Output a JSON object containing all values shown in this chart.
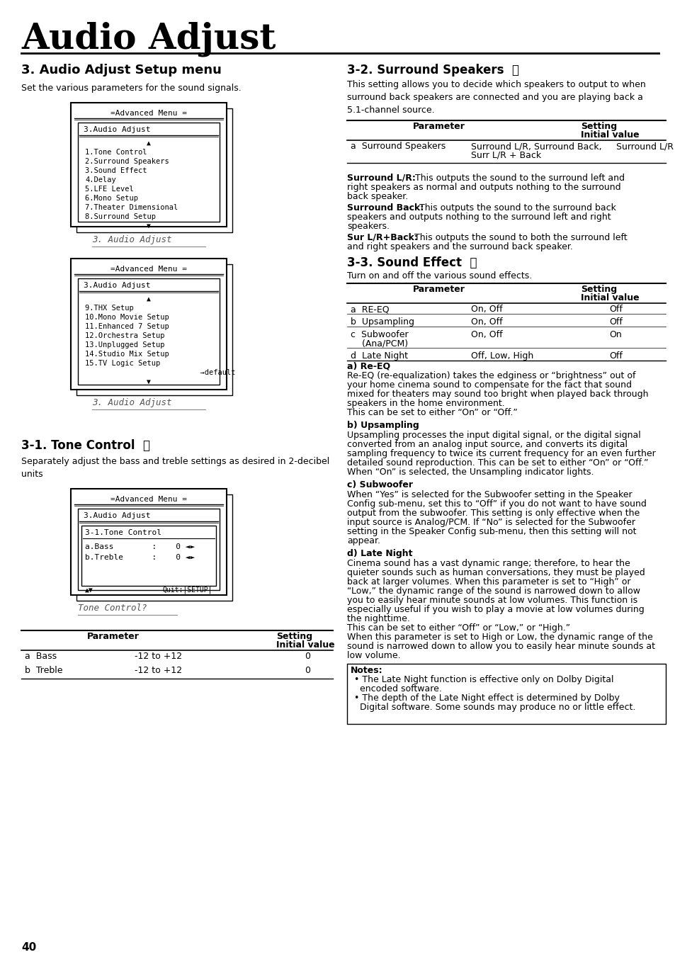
{
  "page_title": "Audio Adjust",
  "section_title": "3. Audio Adjust Setup menu",
  "section_subtitle": "Set the various parameters for the sound signals.",
  "menu1_title": "=Advanced Menu =",
  "menu1_subtitle": "3.Audio Adjust",
  "menu1_items": [
    "▲",
    "1.Tone Control",
    "2.Surround Speakers",
    "3.Sound Effect",
    "4.Delay",
    "5.LFE Level",
    "6.Mono Setup",
    "7.Theater Dimensional",
    "8.Surround Setup",
    "▼"
  ],
  "menu1_label": "3. Audio Adjust",
  "menu2_title": "=Advanced Menu =",
  "menu2_subtitle": "3.Audio Adjust",
  "menu2_items": [
    "▲",
    "9.THX Setup",
    "10.Mono Movie Setup",
    "11.Enhanced 7 Setup",
    "12.Orchestra Setup",
    "13.Unplugged Setup",
    "14.Studio Mix Setup",
    "15.TV Logic Setup",
    "                          →default",
    "▼"
  ],
  "menu2_label": "3. Audio Adjust",
  "tone_section": "3-1. Tone Control",
  "tone_text": "Separately adjust the bass and treble settings as desired in 2-decibel\nunits",
  "menu3_title": "=Advanced Menu =",
  "menu3_subtitle": "3.Audio Adjust",
  "menu3_inner_title": "3-1.Tone Control",
  "menu3_items": [
    "a.Bass        :    0 ◄►",
    "b.Treble      :    0 ◄►"
  ],
  "menu3_footer": "▲▼            Quit:|SETUP|",
  "menu3_label": "Tone Control?",
  "param_table_headers": [
    "Parameter",
    "Setting\nInitial value"
  ],
  "param_table_rows": [
    [
      "a  Bass",
      "-12 to +12",
      "0"
    ],
    [
      "b  Treble",
      "-12 to +12",
      "0"
    ]
  ],
  "right_section1_title": "3-2. Surround Speakers",
  "right_section1_intro": "This setting allows you to decide which speakers to output to when\nsurround back speakers are connected and you are playing back a\n5.1-channel source.",
  "right_table1_headers": [
    "Parameter",
    "Setting\nInitial value"
  ],
  "right_table1_rows": [
    [
      "a  Surround Speakers",
      "Surround L/R, Surround Back,\nSurr L/R + Back",
      "Surround L/R"
    ]
  ],
  "surround_lr_text": "Surround L/R: This outputs the sound to the surround left and\nright speakers as normal and outputs nothing to the surround\nback speaker.",
  "surround_back_text": "Surround Back: This outputs the sound to the surround back\nspeakers and outputs nothing to the surround left and right\nspeakers.",
  "surr_back_text": "Sur L/R+Back: This outputs the sound to both the surround left\nand right speakers and the surround back speaker.",
  "right_section2_title": "3-3. Sound Effect",
  "right_section2_intro": "Turn on and off the various sound effects.",
  "right_table2_headers": [
    "Parameter",
    "Setting\nInitial value"
  ],
  "right_table2_rows": [
    [
      "a  RE-EQ",
      "On, Off",
      "Off"
    ],
    [
      "b  Upsampling",
      "On, Off",
      "Off"
    ],
    [
      "c  Subwoofer\n(Ana/PCM)",
      "On, Off",
      "On"
    ],
    [
      "d  Late Night",
      "Off, Low, High",
      "Off"
    ]
  ],
  "re_eq_title": "a) Re-EQ",
  "re_eq_text": "Re-EQ (re-equalization) takes the edginess or “brightness” out of\nyour home cinema sound to compensate for the fact that sound\nmixed for theaters may sound too bright when played back through\nspeakers in the home environment.\nThis can be set to either “On” or “Off.”",
  "upsampling_title": "b) Upsampling",
  "upsampling_text": "Upsampling processes the input digital signal, or the digital signal\nconverted from an analog input source, and converts its digital\nsampling frequency to twice its current frequency for an even further\ndetailed sound reproduction. This can be set to either “On” or “Off.”\nWhen “On” is selected, the Unsampling indicator lights.",
  "subwoofer_title": "c) Subwoofer",
  "subwoofer_text": "When “Yes” is selected for the Subwoofer setting in the Speaker\nConfig sub-menu, set this to “Off” if you do not want to have sound\noutput from the subwoofer. This setting is only effective when the\ninput source is Analog/PCM. If “No” is selected for the Subwoofer\nsetting in the Speaker Config sub-menu, then this setting will not\nappear.",
  "late_night_title": "d) Late Night",
  "late_night_text": "Cinema sound has a vast dynamic range; therefore, to hear the\nquieter sounds such as human conversations, they must be played\nback at larger volumes. When this parameter is set to “High” or\n“Low,” the dynamic range of the sound is narrowed down to allow\nyou to easily hear minute sounds at low volumes. This function is\nespecially useful if you wish to play a movie at low volumes during\nthe nighttime.\nThis can be set to either “Off” or “Low,” or “High.”\nWhen this parameter is set to High or Low, the dynamic range of the\nsound is narrowed down to allow you to easily hear minute sounds at\nlow volume.",
  "notes_title": "Notes:",
  "notes_items": [
    "The Late Night function is effective only on Dolby Digital\nencoded software.",
    "The depth of the Late Night effect is determined by Dolby\nDigital software. Some sounds may produce no or little effect."
  ],
  "page_num": "40",
  "bg_color": "#ffffff",
  "text_color": "#000000",
  "border_color": "#000000"
}
